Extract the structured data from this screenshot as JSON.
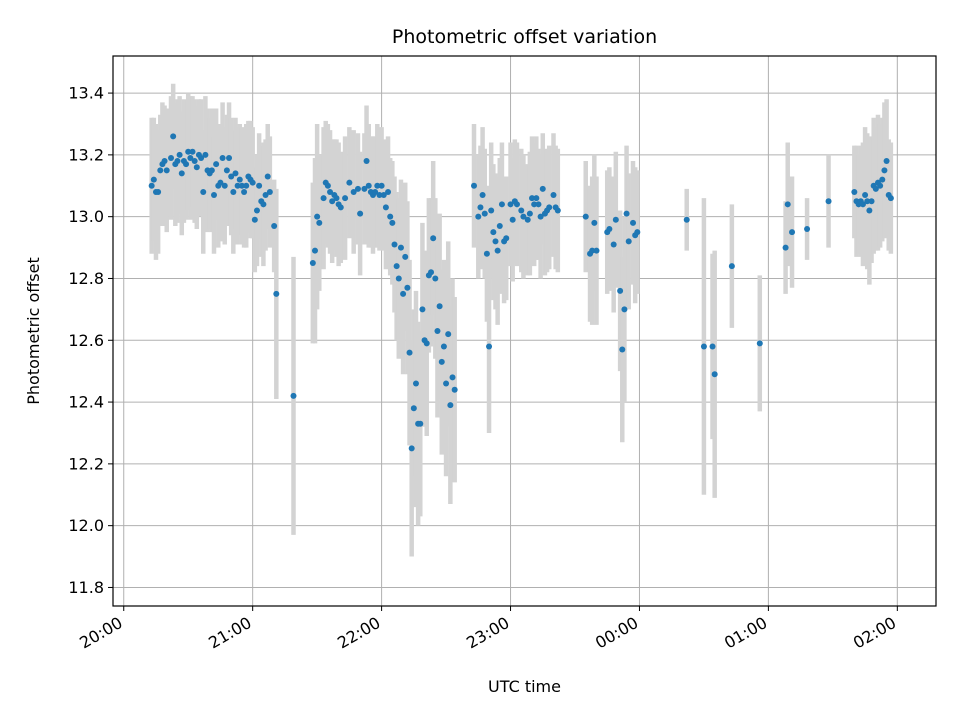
{
  "chart_data": {
    "type": "scatter",
    "title": "Photometric offset variation",
    "xlabel": "UTC time",
    "ylabel": "Photometric offset",
    "x_ticks": [
      "20:00",
      "21:00",
      "22:00",
      "23:00",
      "00:00",
      "01:00",
      "02:00"
    ],
    "y_ticks": [
      "11.8",
      "12.0",
      "12.2",
      "12.4",
      "12.6",
      "12.8",
      "13.0",
      "13.2",
      "13.4"
    ],
    "xlim": [
      "19:55",
      "02:18"
    ],
    "ylim": [
      11.74,
      13.52
    ],
    "grid": true,
    "colors": {
      "point": "#1f77b4",
      "errorbar": "#d3d3d3",
      "grid": "#b0b0b0"
    },
    "series": [
      {
        "points": [
          [
            "20:13",
            13.1,
            0.22
          ],
          [
            "20:14",
            13.12,
            0.2
          ],
          [
            "20:15",
            13.08,
            0.22
          ],
          [
            "20:16",
            13.08,
            0.2
          ],
          [
            "20:17",
            13.15,
            0.18
          ],
          [
            "20:18",
            13.17,
            0.2
          ],
          [
            "20:19",
            13.18,
            0.18
          ],
          [
            "20:20",
            13.15,
            0.2
          ],
          [
            "20:22",
            13.19,
            0.2
          ],
          [
            "20:23",
            13.26,
            0.17
          ],
          [
            "20:24",
            13.17,
            0.2
          ],
          [
            "20:25",
            13.18,
            0.2
          ],
          [
            "20:26",
            13.2,
            0.19
          ],
          [
            "20:27",
            13.14,
            0.2
          ],
          [
            "20:28",
            13.18,
            0.2
          ],
          [
            "20:29",
            13.17,
            0.18
          ],
          [
            "20:30",
            13.21,
            0.19
          ],
          [
            "20:31",
            13.19,
            0.2
          ],
          [
            "20:32",
            13.21,
            0.18
          ],
          [
            "20:33",
            13.18,
            0.2
          ],
          [
            "20:34",
            13.16,
            0.2
          ],
          [
            "20:35",
            13.2,
            0.18
          ],
          [
            "20:36",
            13.19,
            0.19
          ],
          [
            "20:37",
            13.08,
            0.2
          ],
          [
            "20:38",
            13.2,
            0.19
          ],
          [
            "20:39",
            13.15,
            0.2
          ],
          [
            "20:40",
            13.14,
            0.18
          ],
          [
            "20:41",
            13.15,
            0.2
          ],
          [
            "20:42",
            13.07,
            0.19
          ],
          [
            "20:43",
            13.17,
            0.18
          ],
          [
            "20:44",
            13.1,
            0.2
          ],
          [
            "20:45",
            13.11,
            0.19
          ],
          [
            "20:46",
            13.19,
            0.18
          ],
          [
            "20:47",
            13.1,
            0.19
          ],
          [
            "20:48",
            13.15,
            0.18
          ],
          [
            "20:49",
            13.19,
            0.18
          ],
          [
            "20:50",
            13.13,
            0.19
          ],
          [
            "20:51",
            13.08,
            0.2
          ],
          [
            "20:52",
            13.14,
            0.18
          ],
          [
            "20:53",
            13.1,
            0.19
          ],
          [
            "20:54",
            13.12,
            0.18
          ],
          [
            "20:55",
            13.1,
            0.19
          ],
          [
            "20:56",
            13.08,
            0.18
          ],
          [
            "20:57",
            13.1,
            0.2
          ],
          [
            "20:58",
            13.13,
            0.18
          ],
          [
            "20:59",
            13.12,
            0.19
          ],
          [
            "21:00",
            13.11,
            0.18
          ],
          [
            "21:01",
            12.99,
            0.17
          ],
          [
            "21:02",
            13.02,
            0.18
          ],
          [
            "21:03",
            13.1,
            0.17
          ],
          [
            "21:04",
            13.05,
            0.18
          ],
          [
            "21:05",
            13.04,
            0.2
          ],
          [
            "21:06",
            13.07,
            0.18
          ],
          [
            "21:07",
            13.13,
            0.17
          ],
          [
            "21:08",
            13.08,
            0.18
          ],
          [
            "21:10",
            12.97,
            0.15
          ],
          [
            "21:11",
            12.75,
            0.34
          ],
          [
            "21:19",
            12.42,
            0.45
          ],
          [
            "21:28",
            12.85,
            0.26
          ],
          [
            "21:29",
            12.89,
            0.3
          ],
          [
            "21:30",
            13.0,
            0.3
          ],
          [
            "21:31",
            12.98,
            0.22
          ],
          [
            "21:33",
            13.06,
            0.23
          ],
          [
            "21:34",
            13.11,
            0.2
          ],
          [
            "21:35",
            13.1,
            0.2
          ],
          [
            "21:36",
            13.08,
            0.2
          ],
          [
            "21:37",
            13.05,
            0.2
          ],
          [
            "21:38",
            13.07,
            0.18
          ],
          [
            "21:39",
            13.06,
            0.19
          ],
          [
            "21:40",
            13.04,
            0.2
          ],
          [
            "21:41",
            13.03,
            0.18
          ],
          [
            "21:43",
            13.06,
            0.2
          ],
          [
            "21:45",
            13.11,
            0.18
          ],
          [
            "21:47",
            13.08,
            0.2
          ],
          [
            "21:49",
            13.09,
            0.18
          ],
          [
            "21:50",
            13.01,
            0.2
          ],
          [
            "21:52",
            13.09,
            0.18
          ],
          [
            "21:53",
            13.18,
            0.18
          ],
          [
            "21:54",
            13.1,
            0.2
          ],
          [
            "21:55",
            13.08,
            0.18
          ],
          [
            "21:56",
            13.07,
            0.19
          ],
          [
            "21:57",
            13.08,
            0.18
          ],
          [
            "21:58",
            13.1,
            0.2
          ],
          [
            "21:59",
            13.07,
            0.18
          ],
          [
            "22:00",
            13.1,
            0.19
          ],
          [
            "22:01",
            13.07,
            0.18
          ],
          [
            "22:02",
            13.03,
            0.2
          ],
          [
            "22:03",
            13.08,
            0.18
          ],
          [
            "22:04",
            13.0,
            0.19
          ],
          [
            "22:05",
            12.98,
            0.2
          ],
          [
            "22:06",
            12.91,
            0.22
          ],
          [
            "22:07",
            12.84,
            0.24
          ],
          [
            "22:08",
            12.8,
            0.26
          ],
          [
            "22:09",
            12.9,
            0.22
          ],
          [
            "22:10",
            12.75,
            0.26
          ],
          [
            "22:11",
            12.87,
            0.24
          ],
          [
            "22:12",
            12.77,
            0.28
          ],
          [
            "22:13",
            12.56,
            0.3
          ],
          [
            "22:14",
            12.25,
            0.35
          ],
          [
            "22:15",
            12.38,
            0.32
          ],
          [
            "22:16",
            12.46,
            0.3
          ],
          [
            "22:17",
            12.33,
            0.33
          ],
          [
            "22:18",
            12.33,
            0.3
          ],
          [
            "22:19",
            12.7,
            0.28
          ],
          [
            "22:20",
            12.6,
            0.28
          ],
          [
            "22:21",
            12.59,
            0.3
          ],
          [
            "22:22",
            12.81,
            0.25
          ],
          [
            "22:23",
            12.82,
            0.24
          ],
          [
            "22:24",
            12.93,
            0.25
          ],
          [
            "22:25",
            12.8,
            0.26
          ],
          [
            "22:26",
            12.63,
            0.28
          ],
          [
            "22:27",
            12.71,
            0.3
          ],
          [
            "22:28",
            12.53,
            0.3
          ],
          [
            "22:29",
            12.58,
            0.28
          ],
          [
            "22:30",
            12.46,
            0.3
          ],
          [
            "22:31",
            12.62,
            0.3
          ],
          [
            "22:32",
            12.39,
            0.32
          ],
          [
            "22:33",
            12.48,
            0.32
          ],
          [
            "22:34",
            12.44,
            0.3
          ],
          [
            "22:43",
            13.1,
            0.2
          ],
          [
            "22:45",
            13.0,
            0.2
          ],
          [
            "22:46",
            13.03,
            0.2
          ],
          [
            "22:47",
            13.07,
            0.22
          ],
          [
            "22:48",
            13.01,
            0.21
          ],
          [
            "22:49",
            12.88,
            0.22
          ],
          [
            "22:50",
            12.58,
            0.28
          ],
          [
            "22:51",
            13.02,
            0.22
          ],
          [
            "22:52",
            12.95,
            0.22
          ],
          [
            "22:53",
            12.92,
            0.22
          ],
          [
            "22:54",
            12.89,
            0.24
          ],
          [
            "22:55",
            12.97,
            0.22
          ],
          [
            "22:56",
            13.04,
            0.2
          ],
          [
            "22:57",
            12.92,
            0.2
          ],
          [
            "22:58",
            12.93,
            0.2
          ],
          [
            "23:00",
            13.04,
            0.2
          ],
          [
            "23:01",
            12.99,
            0.2
          ],
          [
            "23:02",
            13.05,
            0.2
          ],
          [
            "23:03",
            13.04,
            0.2
          ],
          [
            "23:05",
            13.02,
            0.2
          ],
          [
            "23:06",
            13.0,
            0.2
          ],
          [
            "23:08",
            12.99,
            0.18
          ],
          [
            "23:09",
            13.01,
            0.2
          ],
          [
            "23:10",
            13.06,
            0.2
          ],
          [
            "23:11",
            13.04,
            0.2
          ],
          [
            "23:12",
            13.06,
            0.2
          ],
          [
            "23:13",
            13.04,
            0.18
          ],
          [
            "23:14",
            13.0,
            0.2
          ],
          [
            "23:15",
            13.09,
            0.18
          ],
          [
            "23:16",
            13.01,
            0.2
          ],
          [
            "23:17",
            13.02,
            0.2
          ],
          [
            "23:18",
            13.03,
            0.2
          ],
          [
            "23:20",
            13.07,
            0.2
          ],
          [
            "23:21",
            13.03,
            0.2
          ],
          [
            "23:22",
            13.02,
            0.2
          ],
          [
            "23:35",
            13.0,
            0.18
          ],
          [
            "23:37",
            12.88,
            0.22
          ],
          [
            "23:38",
            12.89,
            0.24
          ],
          [
            "23:39",
            12.98,
            0.22
          ],
          [
            "23:40",
            12.89,
            0.24
          ],
          [
            "23:45",
            12.95,
            0.2
          ],
          [
            "23:46",
            12.96,
            0.2
          ],
          [
            "23:48",
            12.91,
            0.22
          ],
          [
            "23:49",
            12.99,
            0.22
          ],
          [
            "23:51",
            12.76,
            0.26
          ],
          [
            "23:52",
            12.57,
            0.3
          ],
          [
            "23:53",
            12.7,
            0.3
          ],
          [
            "23:54",
            13.01,
            0.22
          ],
          [
            "23:55",
            12.92,
            0.22
          ],
          [
            "23:57",
            12.98,
            0.2
          ],
          [
            "23:58",
            12.94,
            0.22
          ],
          [
            "23:59",
            12.95,
            0.2
          ],
          [
            "00:22",
            12.99,
            0.1
          ],
          [
            "00:30",
            12.58,
            0.48
          ],
          [
            "00:34",
            12.58,
            0.3
          ],
          [
            "00:35",
            12.49,
            0.4
          ],
          [
            "00:43",
            12.84,
            0.2
          ],
          [
            "00:56",
            12.59,
            0.22
          ],
          [
            "01:08",
            12.9,
            0.15
          ],
          [
            "01:09",
            13.04,
            0.2
          ],
          [
            "01:11",
            12.95,
            0.18
          ],
          [
            "01:18",
            12.96,
            0.1
          ],
          [
            "01:28",
            13.05,
            0.15
          ],
          [
            "01:40",
            13.08,
            0.15
          ],
          [
            "01:41",
            13.05,
            0.18
          ],
          [
            "01:42",
            13.04,
            0.16
          ],
          [
            "01:43",
            13.05,
            0.18
          ],
          [
            "01:44",
            13.04,
            0.2
          ],
          [
            "01:45",
            13.07,
            0.22
          ],
          [
            "01:46",
            13.05,
            0.22
          ],
          [
            "01:47",
            13.02,
            0.24
          ],
          [
            "01:48",
            13.05,
            0.2
          ],
          [
            "01:49",
            13.1,
            0.22
          ],
          [
            "01:50",
            13.09,
            0.2
          ],
          [
            "01:51",
            13.11,
            0.22
          ],
          [
            "01:52",
            13.1,
            0.2
          ],
          [
            "01:53",
            13.12,
            0.2
          ],
          [
            "01:54",
            13.15,
            0.22
          ],
          [
            "01:55",
            13.18,
            0.2
          ],
          [
            "01:56",
            13.07,
            0.18
          ],
          [
            "01:57",
            13.06,
            0.18
          ]
        ]
      }
    ]
  }
}
